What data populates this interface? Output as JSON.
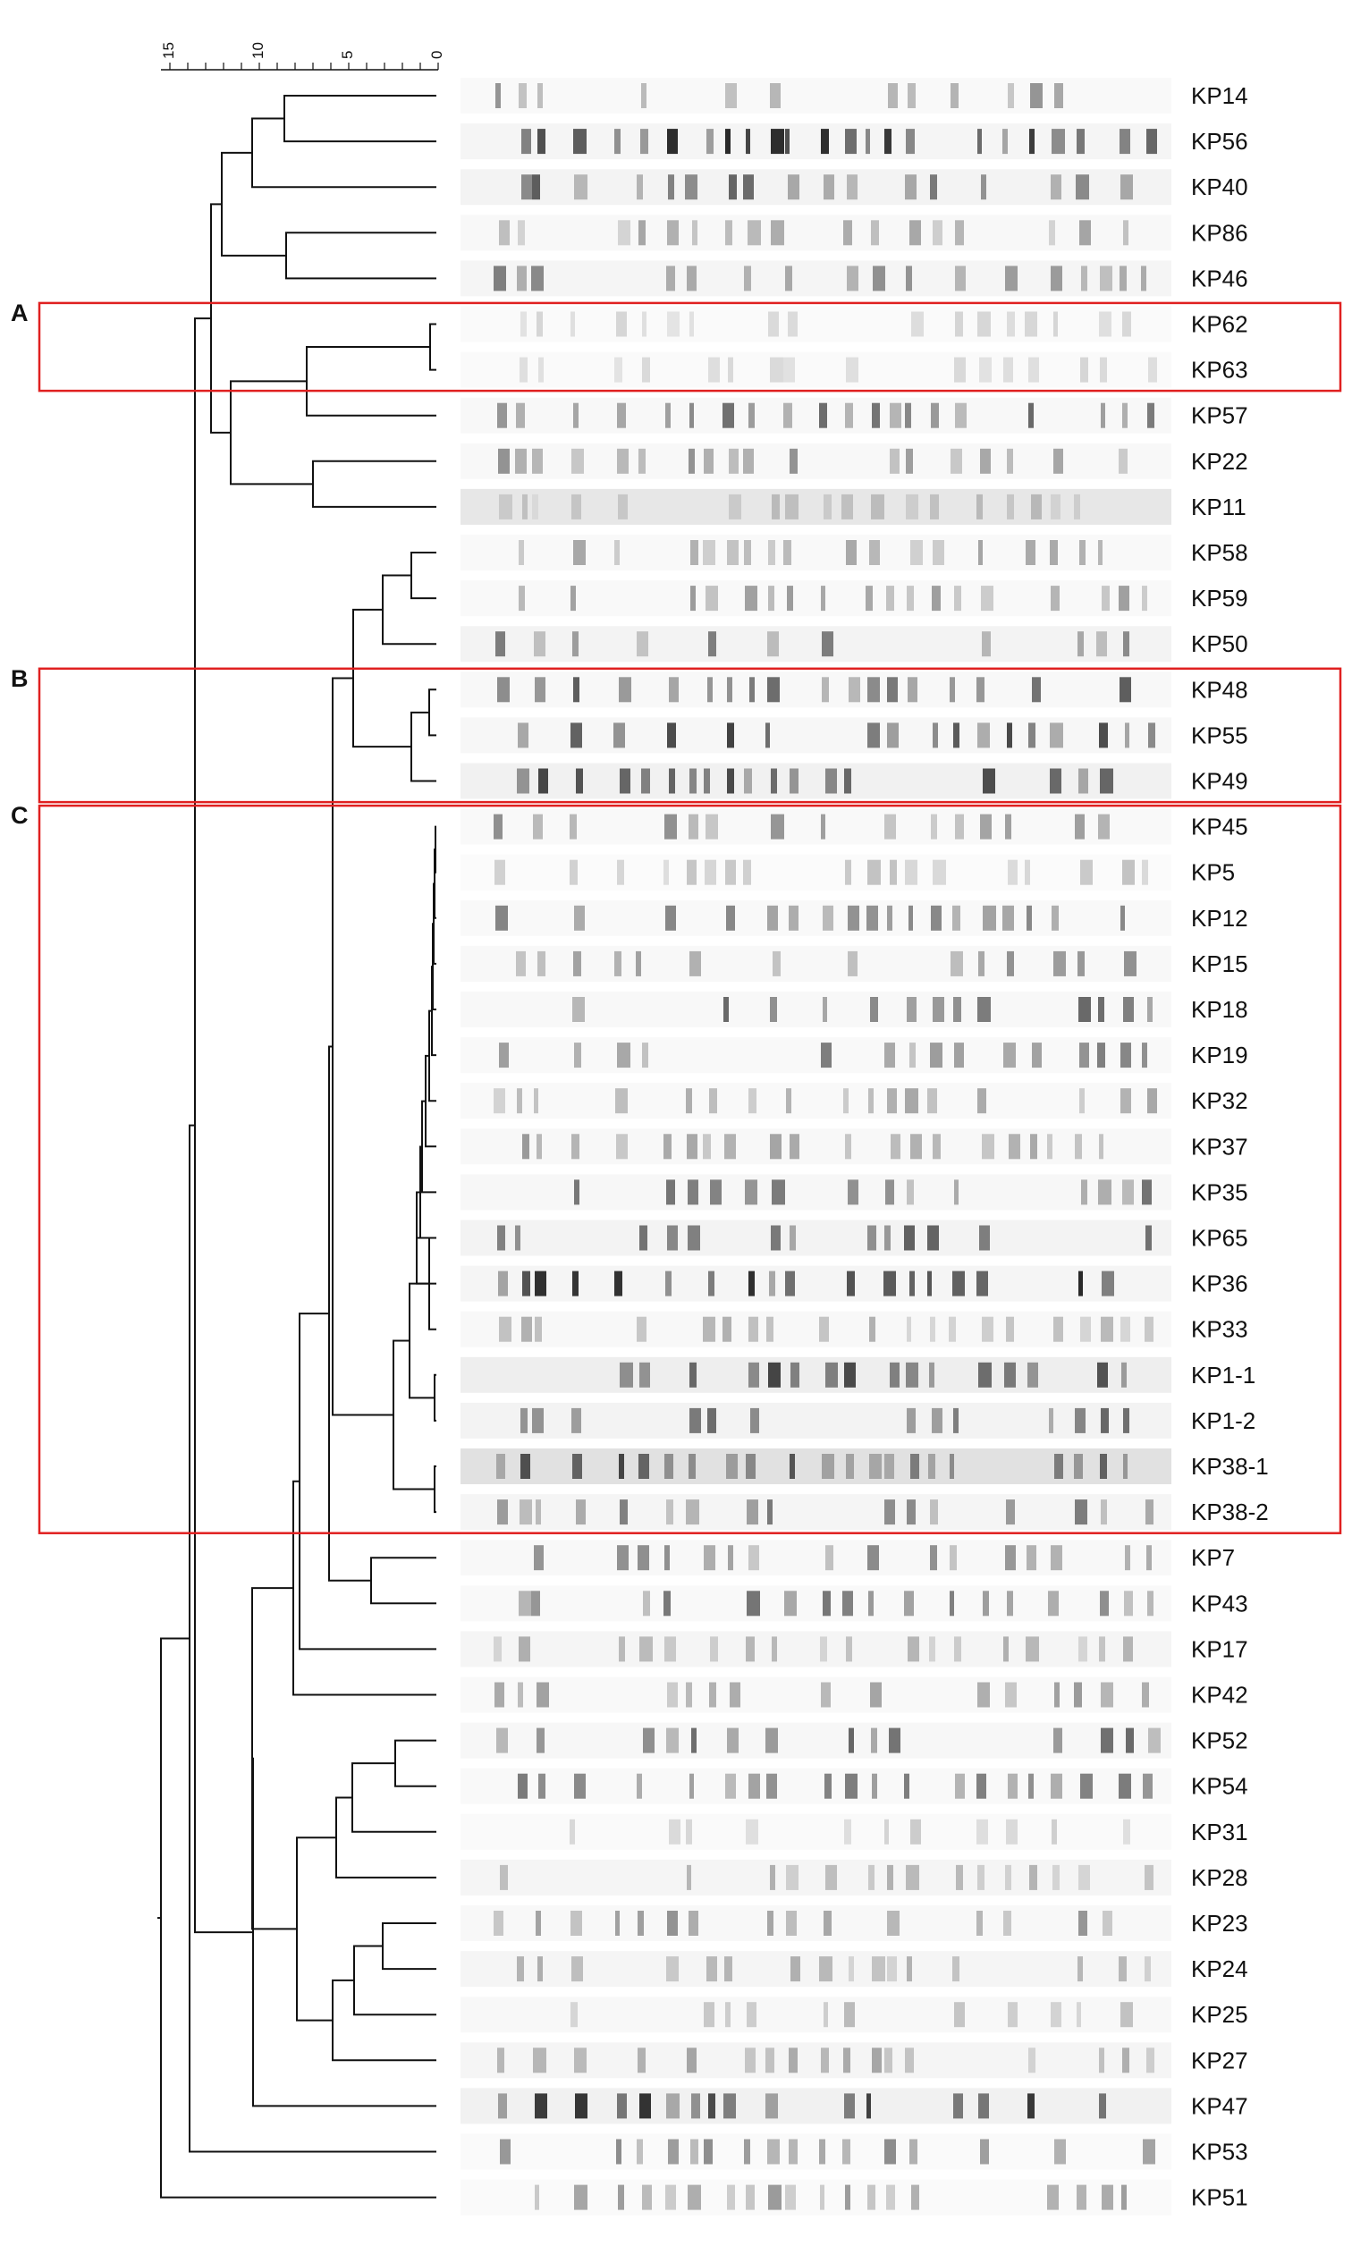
{
  "scale": {
    "ticks": [
      "15",
      "10",
      "5",
      "0"
    ]
  },
  "clusters": [
    {
      "letter": "A",
      "first": 5,
      "last": 6,
      "color": "#e02020"
    },
    {
      "letter": "B",
      "first": 13,
      "last": 15,
      "color": "#e02020"
    },
    {
      "letter": "C",
      "first": 16,
      "last": 31,
      "color": "#e02020"
    }
  ],
  "strains": [
    {
      "label": "KP14",
      "intensity": 0.45,
      "bg": 0.05
    },
    {
      "label": "KP56",
      "intensity": 0.95,
      "bg": 0.08
    },
    {
      "label": "KP40",
      "intensity": 0.7,
      "bg": 0.1
    },
    {
      "label": "KP86",
      "intensity": 0.35,
      "bg": 0.06
    },
    {
      "label": "KP46",
      "intensity": 0.55,
      "bg": 0.08
    },
    {
      "label": "KP62",
      "intensity": 0.12,
      "bg": 0.04
    },
    {
      "label": "KP63",
      "intensity": 0.12,
      "bg": 0.04
    },
    {
      "label": "KP57",
      "intensity": 0.65,
      "bg": 0.06
    },
    {
      "label": "KP22",
      "intensity": 0.45,
      "bg": 0.06
    },
    {
      "label": "KP11",
      "intensity": 0.25,
      "bg": 0.2
    },
    {
      "label": "KP58",
      "intensity": 0.35,
      "bg": 0.05
    },
    {
      "label": "KP59",
      "intensity": 0.4,
      "bg": 0.05
    },
    {
      "label": "KP50",
      "intensity": 0.55,
      "bg": 0.1
    },
    {
      "label": "KP48",
      "intensity": 0.7,
      "bg": 0.06
    },
    {
      "label": "KP55",
      "intensity": 0.85,
      "bg": 0.07
    },
    {
      "label": "KP49",
      "intensity": 0.8,
      "bg": 0.12
    },
    {
      "label": "KP45",
      "intensity": 0.45,
      "bg": 0.05
    },
    {
      "label": "KP5",
      "intensity": 0.2,
      "bg": 0.03
    },
    {
      "label": "KP12",
      "intensity": 0.5,
      "bg": 0.05
    },
    {
      "label": "KP15",
      "intensity": 0.45,
      "bg": 0.06
    },
    {
      "label": "KP18",
      "intensity": 0.65,
      "bg": 0.06
    },
    {
      "label": "KP19",
      "intensity": 0.55,
      "bg": 0.05
    },
    {
      "label": "KP32",
      "intensity": 0.35,
      "bg": 0.05
    },
    {
      "label": "KP37",
      "intensity": 0.4,
      "bg": 0.06
    },
    {
      "label": "KP35",
      "intensity": 0.6,
      "bg": 0.07
    },
    {
      "label": "KP65",
      "intensity": 0.75,
      "bg": 0.1
    },
    {
      "label": "KP36",
      "intensity": 0.95,
      "bg": 0.08
    },
    {
      "label": "KP33",
      "intensity": 0.3,
      "bg": 0.06
    },
    {
      "label": "KP1-1",
      "intensity": 0.9,
      "bg": 0.14
    },
    {
      "label": "KP1-2",
      "intensity": 0.8,
      "bg": 0.1
    },
    {
      "label": "KP38-1",
      "intensity": 0.85,
      "bg": 0.25
    },
    {
      "label": "KP38-2",
      "intensity": 0.55,
      "bg": 0.08
    },
    {
      "label": "KP7",
      "intensity": 0.5,
      "bg": 0.06
    },
    {
      "label": "KP43",
      "intensity": 0.6,
      "bg": 0.05
    },
    {
      "label": "KP17",
      "intensity": 0.3,
      "bg": 0.08
    },
    {
      "label": "KP42",
      "intensity": 0.45,
      "bg": 0.05
    },
    {
      "label": "KP52",
      "intensity": 0.65,
      "bg": 0.07
    },
    {
      "label": "KP54",
      "intensity": 0.55,
      "bg": 0.05
    },
    {
      "label": "KP31",
      "intensity": 0.18,
      "bg": 0.04
    },
    {
      "label": "KP28",
      "intensity": 0.3,
      "bg": 0.08
    },
    {
      "label": "KP23",
      "intensity": 0.45,
      "bg": 0.06
    },
    {
      "label": "KP24",
      "intensity": 0.3,
      "bg": 0.08
    },
    {
      "label": "KP25",
      "intensity": 0.25,
      "bg": 0.06
    },
    {
      "label": "KP27",
      "intensity": 0.35,
      "bg": 0.08
    },
    {
      "label": "KP47",
      "intensity": 0.9,
      "bg": 0.12
    },
    {
      "label": "KP53",
      "intensity": 0.55,
      "bg": 0.04
    },
    {
      "label": "KP51",
      "intensity": 0.4,
      "bg": 0.04
    }
  ]
}
